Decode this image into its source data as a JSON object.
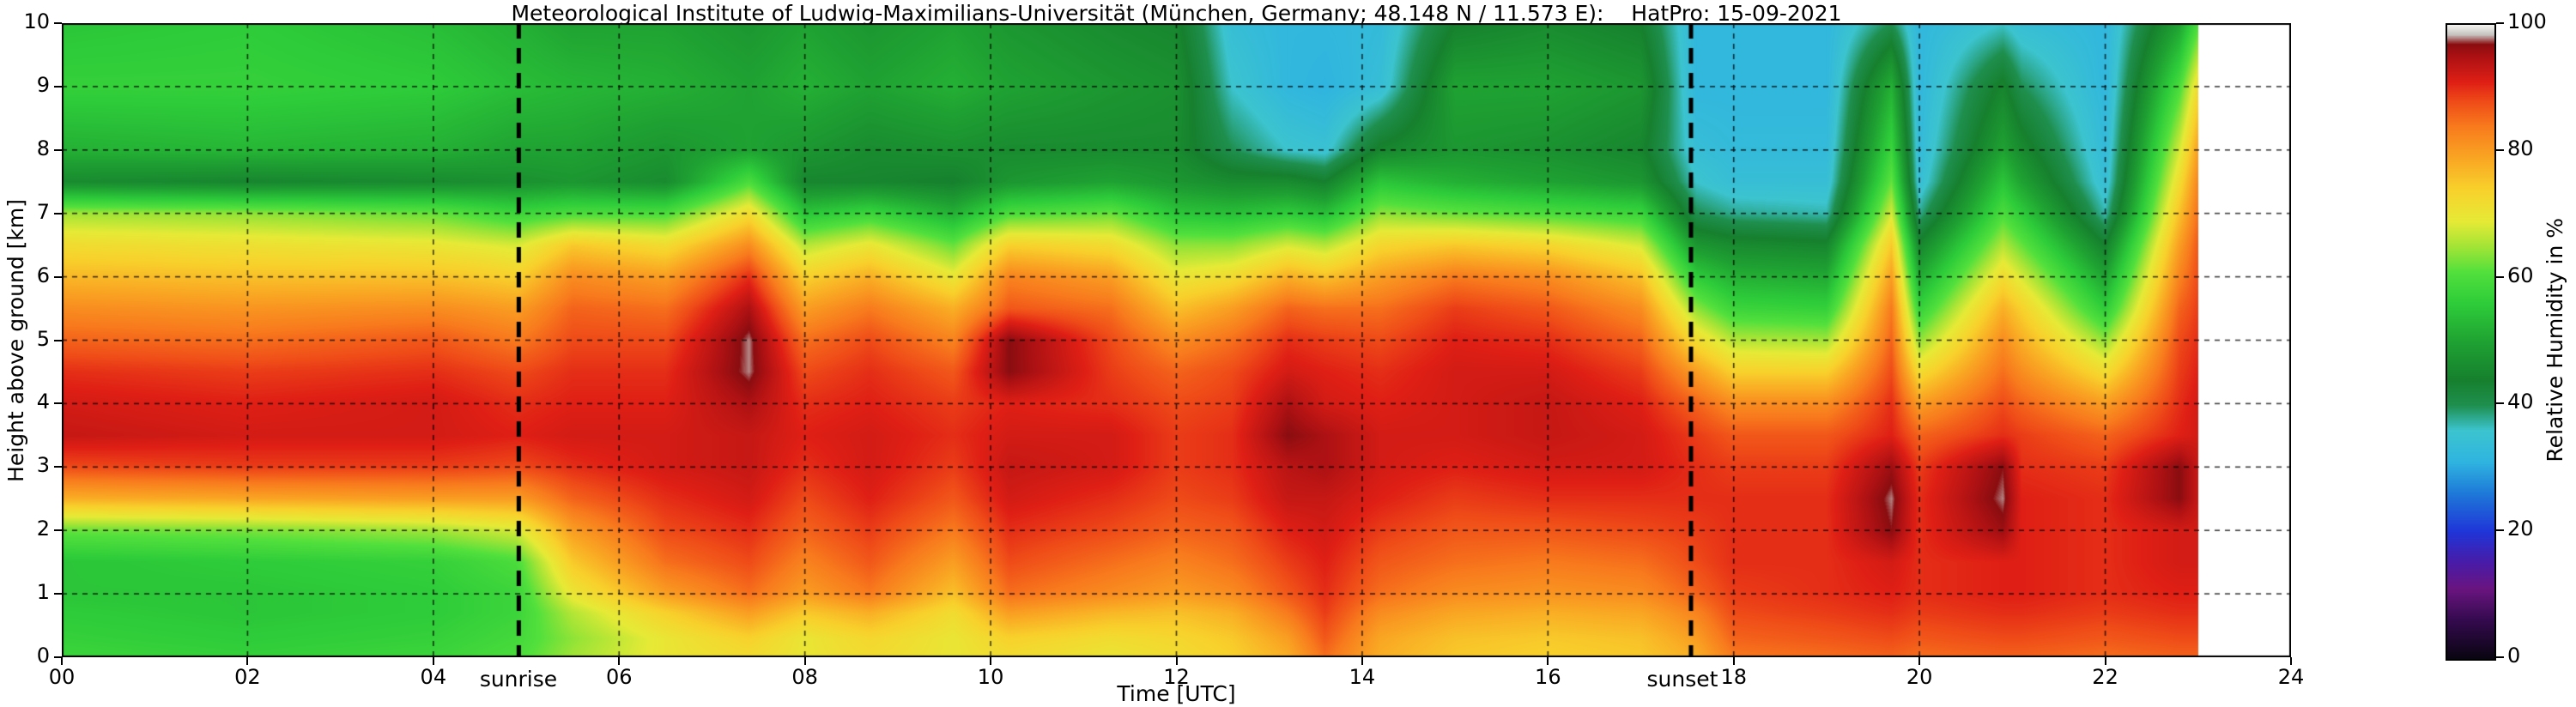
{
  "figure": {
    "background_color": "#ffffff",
    "frame_color": "#000000"
  },
  "chart_data": {
    "type": "heatmap",
    "title": "Meteorological Institute of Ludwig-Maximilians-Universität (München, Germany; 48.148 N / 11.573 E):    HatPro: 15-09-2021",
    "instrument": "HatPro",
    "date": "15-09-2021",
    "xlabel": "Time [UTC]",
    "ylabel": "Height above ground [km]",
    "colorbar_label": "Relative Humidity in %",
    "x_range": [
      0,
      24
    ],
    "y_range": [
      0,
      10
    ],
    "value_range": [
      0,
      100
    ],
    "x_ticks": [
      0,
      2,
      4,
      6,
      8,
      10,
      12,
      14,
      16,
      18,
      20,
      22,
      24
    ],
    "x_tick_labels": [
      "00",
      "02",
      "04",
      "06",
      "08",
      "10",
      "12",
      "14",
      "16",
      "18",
      "20",
      "22",
      "24"
    ],
    "y_ticks": [
      0,
      1,
      2,
      3,
      4,
      5,
      6,
      7,
      8,
      9,
      10
    ],
    "y_tick_labels": [
      "0",
      "1",
      "2",
      "3",
      "4",
      "5",
      "6",
      "7",
      "8",
      "9",
      "10"
    ],
    "colorbar_ticks": [
      0,
      20,
      40,
      60,
      80,
      100
    ],
    "colorbar_tick_labels": [
      "0",
      "20",
      "40",
      "60",
      "80",
      "100"
    ],
    "grid": "dashed black lines every 2 h and every 1 km",
    "legend_position": "colorbar right",
    "data_end_hour": 23,
    "no_data_color": "#ffffff",
    "annotations": [
      {
        "label": "sunrise",
        "hour": 4.92,
        "style": "thick dashed vertical black line"
      },
      {
        "label": "sunset",
        "hour": 17.54,
        "style": "thick dashed vertical black line"
      }
    ],
    "x": [
      0,
      2,
      4,
      4.9,
      5.5,
      6.5,
      7.4,
      8,
      8.7,
      9.6,
      10.2,
      11.3,
      12,
      12.6,
      13.2,
      13.6,
      14.2,
      15,
      16,
      17,
      17.6,
      18,
      19,
      19.7,
      20,
      20.9,
      21.1,
      22,
      22.8,
      23
    ],
    "heights_km": [
      0,
      0.3,
      0.7,
      1,
      1.5,
      2,
      2.5,
      3,
      3.5,
      4,
      4.5,
      5,
      5.5,
      6,
      6.5,
      7,
      7.5,
      8,
      9,
      10
    ],
    "rh_percent": [
      [
        58,
        57,
        56,
        55,
        55,
        62,
        78,
        88,
        93,
        92,
        90,
        86,
        82,
        77,
        72,
        65,
        46,
        52,
        57,
        55
      ],
      [
        57,
        56,
        55,
        55,
        56,
        63,
        79,
        89,
        92,
        91,
        89,
        85,
        81,
        76,
        71,
        64,
        45,
        53,
        57,
        56
      ],
      [
        58,
        57,
        56,
        56,
        57,
        65,
        80,
        89,
        92,
        92,
        90,
        87,
        82,
        76,
        70,
        62,
        46,
        52,
        56,
        54
      ],
      [
        60,
        59,
        58,
        58,
        60,
        68,
        80,
        88,
        91,
        90,
        88,
        84,
        80,
        74,
        68,
        58,
        47,
        50,
        54,
        52
      ],
      [
        65,
        64,
        66,
        70,
        75,
        80,
        86,
        90,
        92,
        91,
        90,
        88,
        86,
        82,
        75,
        60,
        48,
        50,
        53,
        50
      ],
      [
        70,
        70,
        74,
        80,
        85,
        88,
        90,
        92,
        92,
        91,
        90,
        88,
        85,
        80,
        72,
        60,
        46,
        48,
        52,
        50
      ],
      [
        72,
        74,
        80,
        85,
        88,
        90,
        92,
        93,
        93,
        95,
        98,
        98,
        95,
        90,
        82,
        72,
        60,
        50,
        50,
        48
      ],
      [
        70,
        70,
        75,
        80,
        83,
        86,
        88,
        90,
        91,
        90,
        88,
        85,
        80,
        74,
        66,
        55,
        45,
        48,
        52,
        50
      ],
      [
        72,
        73,
        78,
        84,
        87,
        89,
        91,
        92,
        92,
        91,
        90,
        88,
        84,
        78,
        70,
        58,
        45,
        46,
        50,
        48
      ],
      [
        70,
        70,
        72,
        76,
        80,
        84,
        87,
        89,
        90,
        89,
        87,
        83,
        78,
        70,
        62,
        52,
        44,
        47,
        52,
        50
      ],
      [
        72,
        74,
        80,
        85,
        88,
        90,
        92,
        93,
        92,
        91,
        97,
        97,
        87,
        83,
        74,
        60,
        48,
        46,
        50,
        48
      ],
      [
        70,
        72,
        77,
        82,
        85,
        88,
        90,
        92,
        92,
        90,
        89,
        88,
        85,
        80,
        72,
        62,
        50,
        46,
        48,
        46
      ],
      [
        72,
        73,
        76,
        80,
        83,
        86,
        88,
        89,
        89,
        88,
        86,
        82,
        76,
        70,
        64,
        55,
        48,
        46,
        47,
        45
      ],
      [
        74,
        75,
        78,
        82,
        85,
        87,
        89,
        90,
        90,
        89,
        88,
        85,
        80,
        72,
        64,
        54,
        46,
        40,
        36,
        34
      ],
      [
        78,
        80,
        84,
        87,
        89,
        91,
        93,
        94,
        97,
        95,
        92,
        90,
        86,
        78,
        68,
        56,
        46,
        36,
        32,
        32
      ],
      [
        85,
        87,
        89,
        90,
        91,
        92,
        93,
        95,
        95,
        92,
        91,
        89,
        85,
        76,
        66,
        54,
        44,
        35,
        31,
        32
      ],
      [
        78,
        79,
        82,
        85,
        87,
        89,
        91,
        92,
        92,
        91,
        90,
        88,
        85,
        80,
        73,
        64,
        55,
        45,
        34,
        33
      ],
      [
        75,
        76,
        79,
        82,
        85,
        87,
        89,
        91,
        92,
        92,
        92,
        91,
        89,
        84,
        75,
        62,
        52,
        48,
        50,
        44
      ],
      [
        74,
        75,
        78,
        81,
        84,
        87,
        90,
        92,
        93,
        93,
        92,
        90,
        87,
        82,
        73,
        60,
        50,
        47,
        50,
        46
      ],
      [
        75,
        76,
        79,
        82,
        85,
        88,
        90,
        92,
        92,
        91,
        89,
        86,
        82,
        76,
        68,
        58,
        48,
        45,
        48,
        44
      ],
      [
        78,
        80,
        83,
        86,
        88,
        89,
        90,
        90,
        89,
        86,
        80,
        72,
        64,
        56,
        48,
        40,
        36,
        34,
        32,
        32
      ],
      [
        84,
        86,
        88,
        89,
        90,
        90,
        90,
        89,
        87,
        82,
        74,
        66,
        58,
        52,
        46,
        38,
        34,
        33,
        32,
        32
      ],
      [
        85,
        87,
        89,
        90,
        90,
        90,
        90,
        89,
        87,
        82,
        74,
        65,
        57,
        51,
        45,
        37,
        34,
        33,
        32,
        32
      ],
      [
        86,
        88,
        90,
        91,
        92,
        97,
        98,
        96,
        91,
        90,
        88,
        86,
        84,
        80,
        75,
        68,
        62,
        58,
        52,
        40
      ],
      [
        85,
        87,
        89,
        90,
        90,
        90,
        90,
        89,
        86,
        80,
        72,
        64,
        57,
        51,
        45,
        38,
        34,
        33,
        32,
        32
      ],
      [
        86,
        88,
        90,
        91,
        91,
        96,
        98,
        97,
        90,
        88,
        85,
        82,
        78,
        72,
        66,
        60,
        55,
        50,
        45,
        36
      ],
      [
        86,
        88,
        90,
        91,
        91,
        91,
        91,
        90,
        89,
        86,
        82,
        78,
        74,
        68,
        62,
        56,
        50,
        46,
        40,
        34
      ],
      [
        85,
        87,
        89,
        90,
        90,
        90,
        90,
        89,
        86,
        80,
        72,
        64,
        56,
        50,
        44,
        37,
        34,
        33,
        32,
        32
      ],
      [
        86,
        88,
        90,
        91,
        92,
        92,
        97,
        97,
        91,
        90,
        89,
        88,
        86,
        83,
        80,
        76,
        72,
        68,
        60,
        50
      ],
      [
        86,
        88,
        90,
        91,
        92,
        92,
        93,
        93,
        92,
        92,
        91,
        90,
        89,
        88,
        87,
        85,
        83,
        80,
        72,
        60
      ]
    ],
    "colormap_stops": [
      [
        0,
        "#0a0512"
      ],
      [
        6,
        "#340a4e"
      ],
      [
        11,
        "#6a1580"
      ],
      [
        15,
        "#4a1ba6"
      ],
      [
        20,
        "#1f35d8"
      ],
      [
        26,
        "#1e79d8"
      ],
      [
        31,
        "#2fb4e0"
      ],
      [
        36,
        "#3cc4cf"
      ],
      [
        40,
        "#1f8f4e"
      ],
      [
        44,
        "#16802e"
      ],
      [
        50,
        "#1fa232"
      ],
      [
        56,
        "#2ecc3a"
      ],
      [
        61,
        "#52e03c"
      ],
      [
        65,
        "#a2e436"
      ],
      [
        69,
        "#e6ea36"
      ],
      [
        74,
        "#f8d22c"
      ],
      [
        79,
        "#f9a623"
      ],
      [
        84,
        "#f87b1d"
      ],
      [
        88,
        "#ef4b18"
      ],
      [
        91,
        "#df1f15"
      ],
      [
        95,
        "#ad1113"
      ],
      [
        97,
        "#8a0d10"
      ],
      [
        98.5,
        "#c6c4c0"
      ],
      [
        100,
        "#f4f2ee"
      ]
    ]
  }
}
